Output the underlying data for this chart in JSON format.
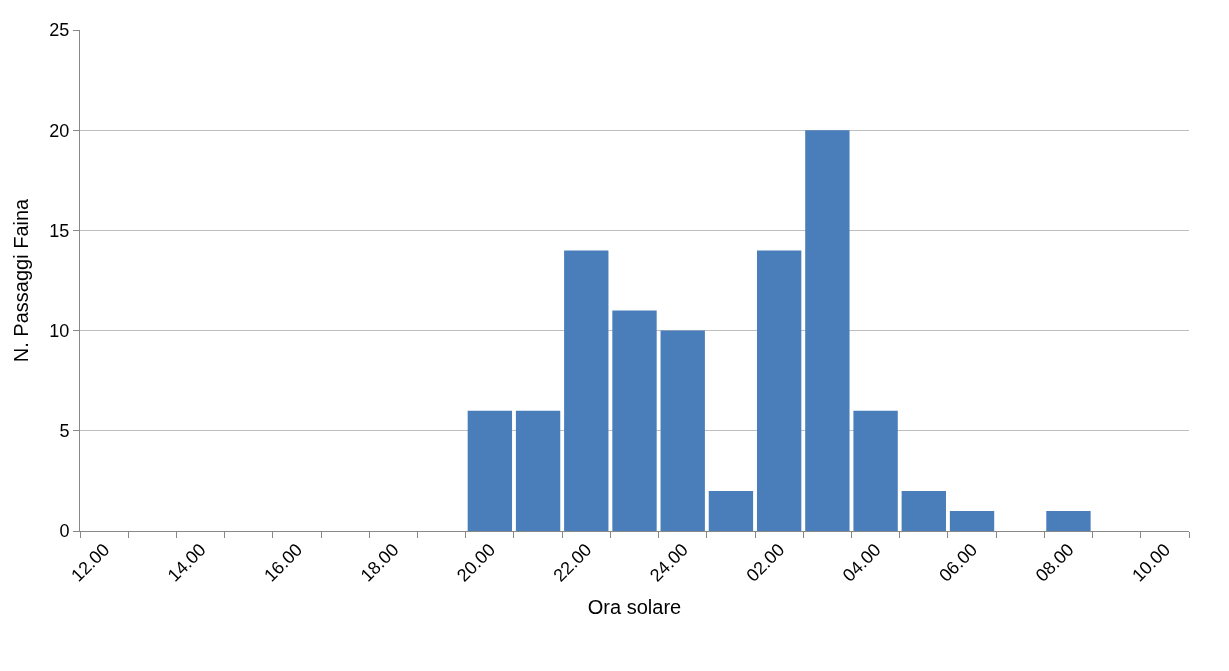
{
  "chart_data": {
    "type": "bar",
    "xlabel": "Ora solare",
    "ylabel": "N. Passaggi Faina",
    "categories": [
      "12.00",
      null,
      "14.00",
      null,
      "16.00",
      null,
      "18.00",
      null,
      "20.00",
      null,
      "22.00",
      null,
      "24.00",
      null,
      "02.00",
      null,
      "04.00",
      null,
      "06.00",
      null,
      "08.00",
      null,
      "10.00"
    ],
    "values": [
      0,
      0,
      0,
      0,
      0,
      0,
      0,
      0,
      6,
      6,
      14,
      11,
      10,
      2,
      14,
      20,
      6,
      2,
      1,
      0,
      1,
      0,
      0
    ],
    "color": "#4a7ebb",
    "ylim": [
      0,
      25
    ],
    "yticks": [
      0,
      5,
      10,
      15,
      20,
      25
    ],
    "grid": "y"
  }
}
